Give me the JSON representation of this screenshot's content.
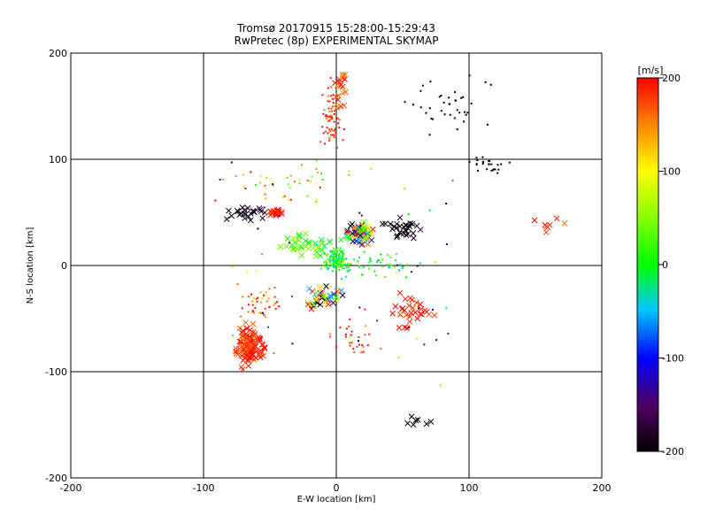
{
  "chart_data": {
    "type": "scatter",
    "title": "Tromsø 20170915 15:28:00-15:29:43",
    "subtitle": "RwPretec (8p) EXPERIMENTAL SKYMAP",
    "xlabel": "E-W location [km]",
    "ylabel": "N-S location [km]",
    "xlim": [
      -200,
      200
    ],
    "ylim": [
      -200,
      200
    ],
    "xticks": [
      "-200",
      "-100",
      "0",
      "100",
      "200"
    ],
    "yticks": [
      "-200",
      "-100",
      "0",
      "100",
      "200"
    ],
    "grid": "on",
    "colorbar": {
      "label": "[m/s]",
      "range": [
        -200,
        200
      ],
      "ticks": [
        "200",
        "100",
        "0",
        "-100",
        "-200"
      ]
    },
    "markers": {
      "cross": "x",
      "dot": "+"
    },
    "clusters": [
      {
        "x": -3,
        "y": 140,
        "rx": 10,
        "ry": 45,
        "n": 70,
        "v": [
          150,
          220
        ],
        "m": "dot"
      },
      {
        "x": 3,
        "y": 170,
        "rx": 6,
        "ry": 25,
        "n": 20,
        "v": [
          140,
          220
        ],
        "m": "cross"
      },
      {
        "x": 85,
        "y": 150,
        "rx": 50,
        "ry": 40,
        "n": 38,
        "v": [
          -230,
          -180
        ],
        "m": "dot"
      },
      {
        "x": 115,
        "y": 95,
        "rx": 20,
        "ry": 12,
        "n": 25,
        "v": [
          -230,
          -180
        ],
        "m": "dot"
      },
      {
        "x": 18,
        "y": 30,
        "rx": 14,
        "ry": 12,
        "n": 90,
        "v": [
          -230,
          200
        ],
        "m": "cross"
      },
      {
        "x": 50,
        "y": 35,
        "rx": 20,
        "ry": 12,
        "n": 30,
        "v": [
          -230,
          -160
        ],
        "m": "cross"
      },
      {
        "x": 0,
        "y": 5,
        "rx": 14,
        "ry": 14,
        "n": 140,
        "v": [
          -40,
          60
        ],
        "m": "dot"
      },
      {
        "x": 30,
        "y": 0,
        "rx": 45,
        "ry": 20,
        "n": 50,
        "v": [
          -60,
          40
        ],
        "m": "dot"
      },
      {
        "x": -20,
        "y": 20,
        "rx": 30,
        "ry": 15,
        "n": 40,
        "v": [
          -20,
          60
        ],
        "m": "cross"
      },
      {
        "x": -45,
        "y": 50,
        "rx": 8,
        "ry": 4,
        "n": 30,
        "v": [
          160,
          220
        ],
        "m": "cross"
      },
      {
        "x": -65,
        "y": 50,
        "rx": 20,
        "ry": 10,
        "n": 25,
        "v": [
          -230,
          -150
        ],
        "m": "cross"
      },
      {
        "x": -65,
        "y": -75,
        "rx": 15,
        "ry": 25,
        "n": 110,
        "v": [
          150,
          220
        ],
        "m": "cross"
      },
      {
        "x": -60,
        "y": -35,
        "rx": 30,
        "ry": 25,
        "n": 45,
        "v": [
          100,
          220
        ],
        "m": "dot"
      },
      {
        "x": -10,
        "y": -30,
        "rx": 18,
        "ry": 15,
        "n": 40,
        "v": [
          -230,
          200
        ],
        "m": "cross"
      },
      {
        "x": 55,
        "y": -45,
        "rx": 25,
        "ry": 30,
        "n": 30,
        "v": [
          170,
          220
        ],
        "m": "cross"
      },
      {
        "x": 15,
        "y": -70,
        "rx": 25,
        "ry": 25,
        "n": 25,
        "v": [
          150,
          220
        ],
        "m": "dot"
      },
      {
        "x": 160,
        "y": 40,
        "rx": 20,
        "ry": 15,
        "n": 8,
        "v": [
          150,
          220
        ],
        "m": "cross"
      },
      {
        "x": -40,
        "y": 80,
        "rx": 60,
        "ry": 30,
        "n": 40,
        "v": [
          0,
          220
        ],
        "m": "dot"
      },
      {
        "x": 60,
        "y": -145,
        "rx": 25,
        "ry": 10,
        "n": 7,
        "v": [
          -230,
          -180
        ],
        "m": "cross"
      },
      {
        "x": 0,
        "y": 0,
        "rx": 160,
        "ry": 160,
        "n": 60,
        "v": [
          -230,
          220
        ],
        "m": "dot"
      }
    ]
  }
}
